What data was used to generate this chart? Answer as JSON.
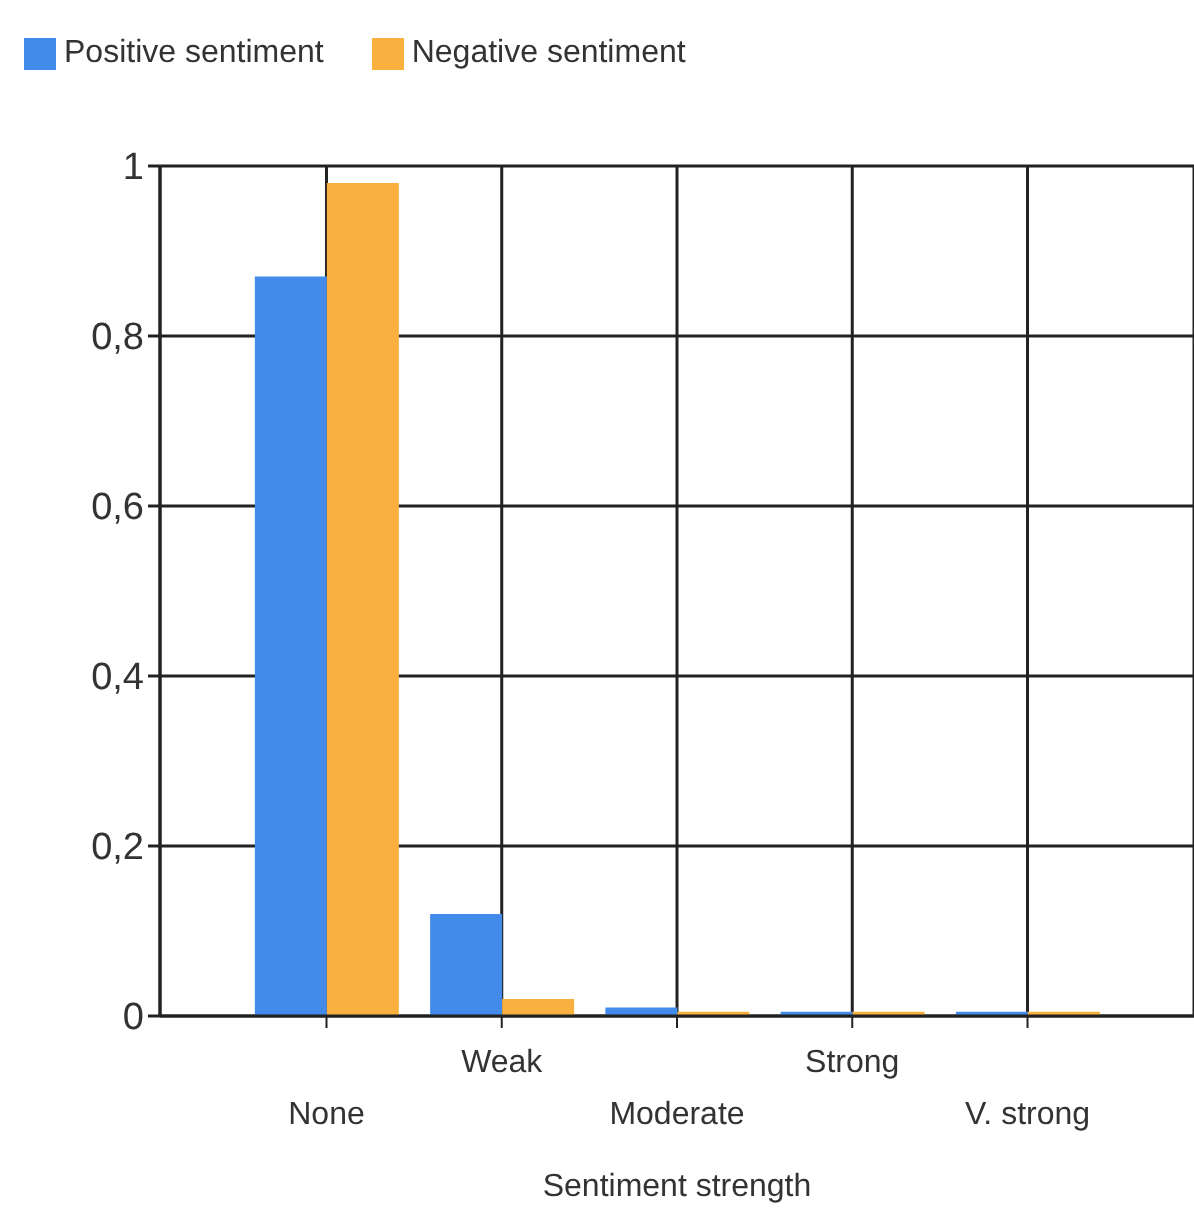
{
  "chart_data": {
    "type": "bar",
    "xlabel": "Sentiment strength",
    "categories": [
      "None",
      "Weak",
      "Moderate",
      "Strong",
      "V. strong"
    ],
    "series": [
      {
        "name": "Positive sentiment",
        "color": "#428bea",
        "values": [
          0.87,
          0.12,
          0.01,
          0.005,
          0.005
        ]
      },
      {
        "name": "Negative sentiment",
        "color": "#fab03f",
        "values": [
          0.98,
          0.02,
          0.005,
          0.005,
          0.005
        ]
      }
    ],
    "ylim": [
      0,
      1
    ],
    "yticks": [
      {
        "value": 0,
        "label": "0"
      },
      {
        "value": 0.2,
        "label": "0,2"
      },
      {
        "value": 0.4,
        "label": "0,4"
      },
      {
        "value": 0.6,
        "label": "0,6"
      },
      {
        "value": 0.8,
        "label": "0,8"
      },
      {
        "value": 1,
        "label": "1"
      }
    ],
    "grid": true,
    "legend": "top left"
  }
}
